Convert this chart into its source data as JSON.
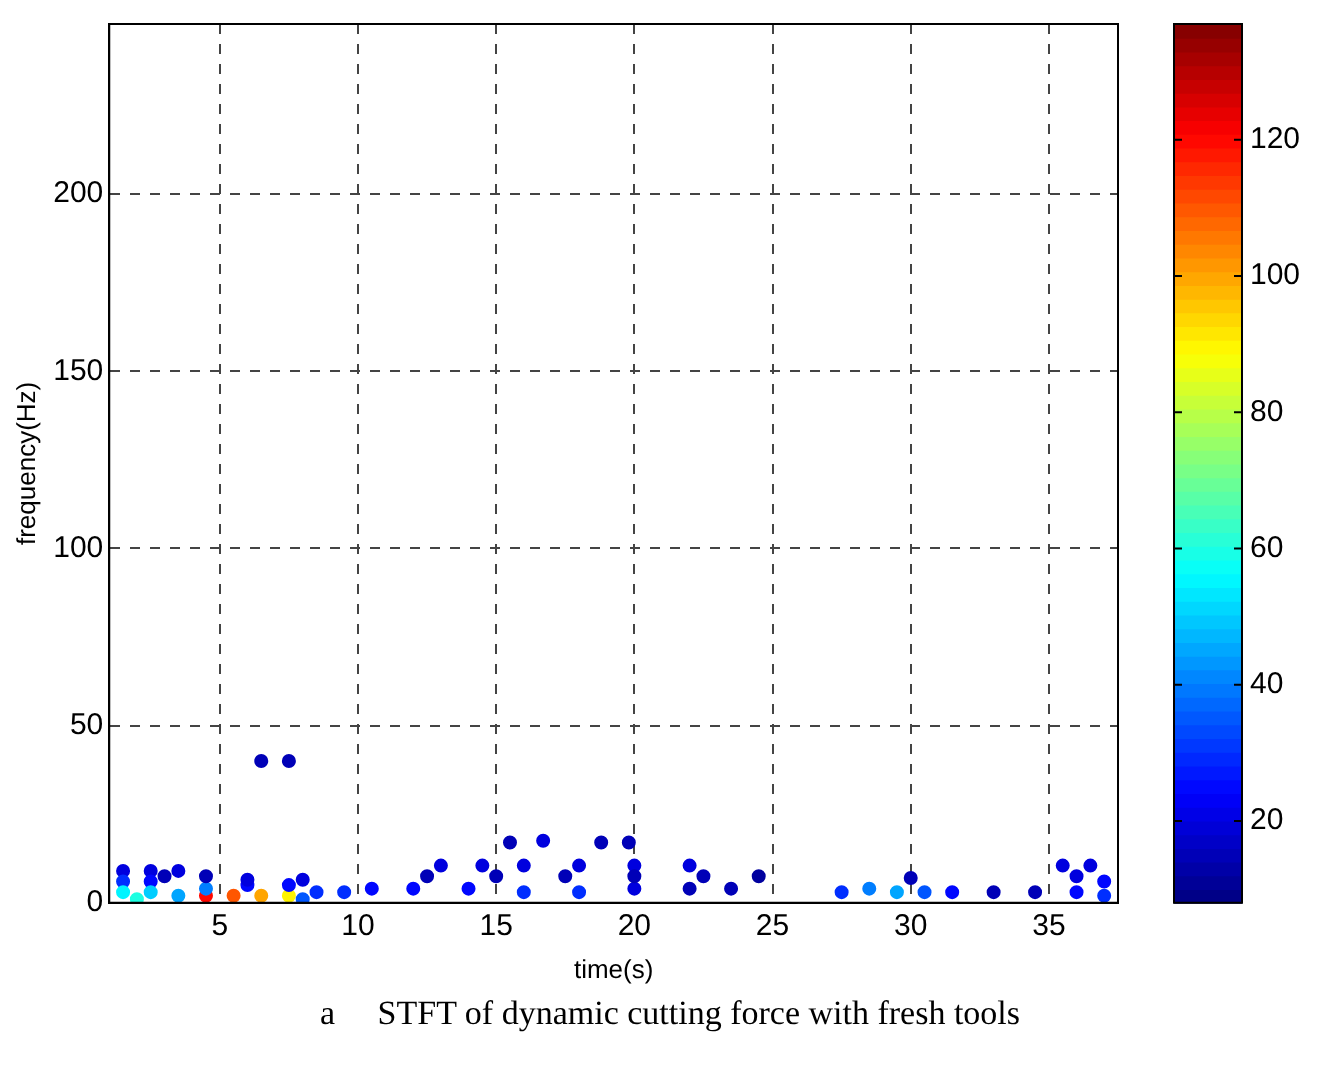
{
  "chart_data": {
    "type": "scatter",
    "xlabel": "time(s)",
    "ylabel": "frequency(Hz)",
    "xlim": [
      1,
      37.5
    ],
    "xticks": [
      5,
      10,
      15,
      20,
      25,
      30,
      35
    ],
    "ylim": [
      0,
      248
    ],
    "yticks": [
      0,
      50,
      100,
      150,
      200
    ],
    "grid": true,
    "marker": "circle",
    "clim": [
      8,
      137
    ],
    "cticks": [
      20,
      40,
      60,
      80,
      100,
      120
    ],
    "x": [
      1.5,
      2.5,
      3.5,
      1.5,
      2.5,
      1.5,
      2.5,
      3.5,
      4.5,
      5.5,
      6.5,
      7.5,
      4.5,
      6,
      7.5,
      8.5,
      9.5,
      8,
      2,
      6,
      8,
      3,
      4.5,
      6.5,
      7.5,
      10.5,
      12,
      14,
      16,
      18,
      20,
      22,
      23.5,
      13,
      14.5,
      16,
      18,
      20,
      22,
      12.5,
      15,
      17.5,
      20,
      22.5,
      24.5,
      15.5,
      16.7,
      18.8,
      19.8,
      27.5,
      28.5,
      29.5,
      30.5,
      31.5,
      33,
      34.5,
      36,
      37,
      35.5,
      36.5,
      36,
      37,
      30
    ],
    "values": [
      9,
      9,
      9,
      6,
      6,
      3,
      3,
      2,
      2,
      2,
      2,
      2,
      4,
      5,
      5,
      3,
      3,
      1,
      1,
      6.5,
      6.5,
      7.5,
      7.5,
      40,
      40,
      4,
      4,
      4,
      3,
      3,
      4,
      4,
      4,
      10.5,
      10.5,
      10.5,
      10.5,
      10.5,
      10.5,
      7.5,
      7.5,
      7.5,
      7.5,
      7.5,
      7.5,
      17,
      17.5,
      17,
      17,
      3,
      4,
      3,
      3,
      3,
      3,
      3,
      3,
      2,
      10.5,
      10.5,
      7.5,
      6,
      7
    ],
    "cvalues": [
      20,
      20,
      20,
      30,
      25,
      55,
      50,
      45,
      120,
      110,
      100,
      90,
      40,
      25,
      25,
      30,
      30,
      35,
      60,
      20,
      20,
      15,
      15,
      15,
      15,
      25,
      25,
      25,
      30,
      30,
      20,
      15,
      15,
      20,
      20,
      20,
      20,
      20,
      20,
      15,
      15,
      15,
      15,
      15,
      12,
      15,
      20,
      15,
      15,
      30,
      40,
      45,
      35,
      25,
      15,
      15,
      25,
      30,
      20,
      20,
      20,
      25,
      15
    ],
    "annotations": [
      "a     STFT of dynamic cutting force with fresh tools"
    ]
  }
}
